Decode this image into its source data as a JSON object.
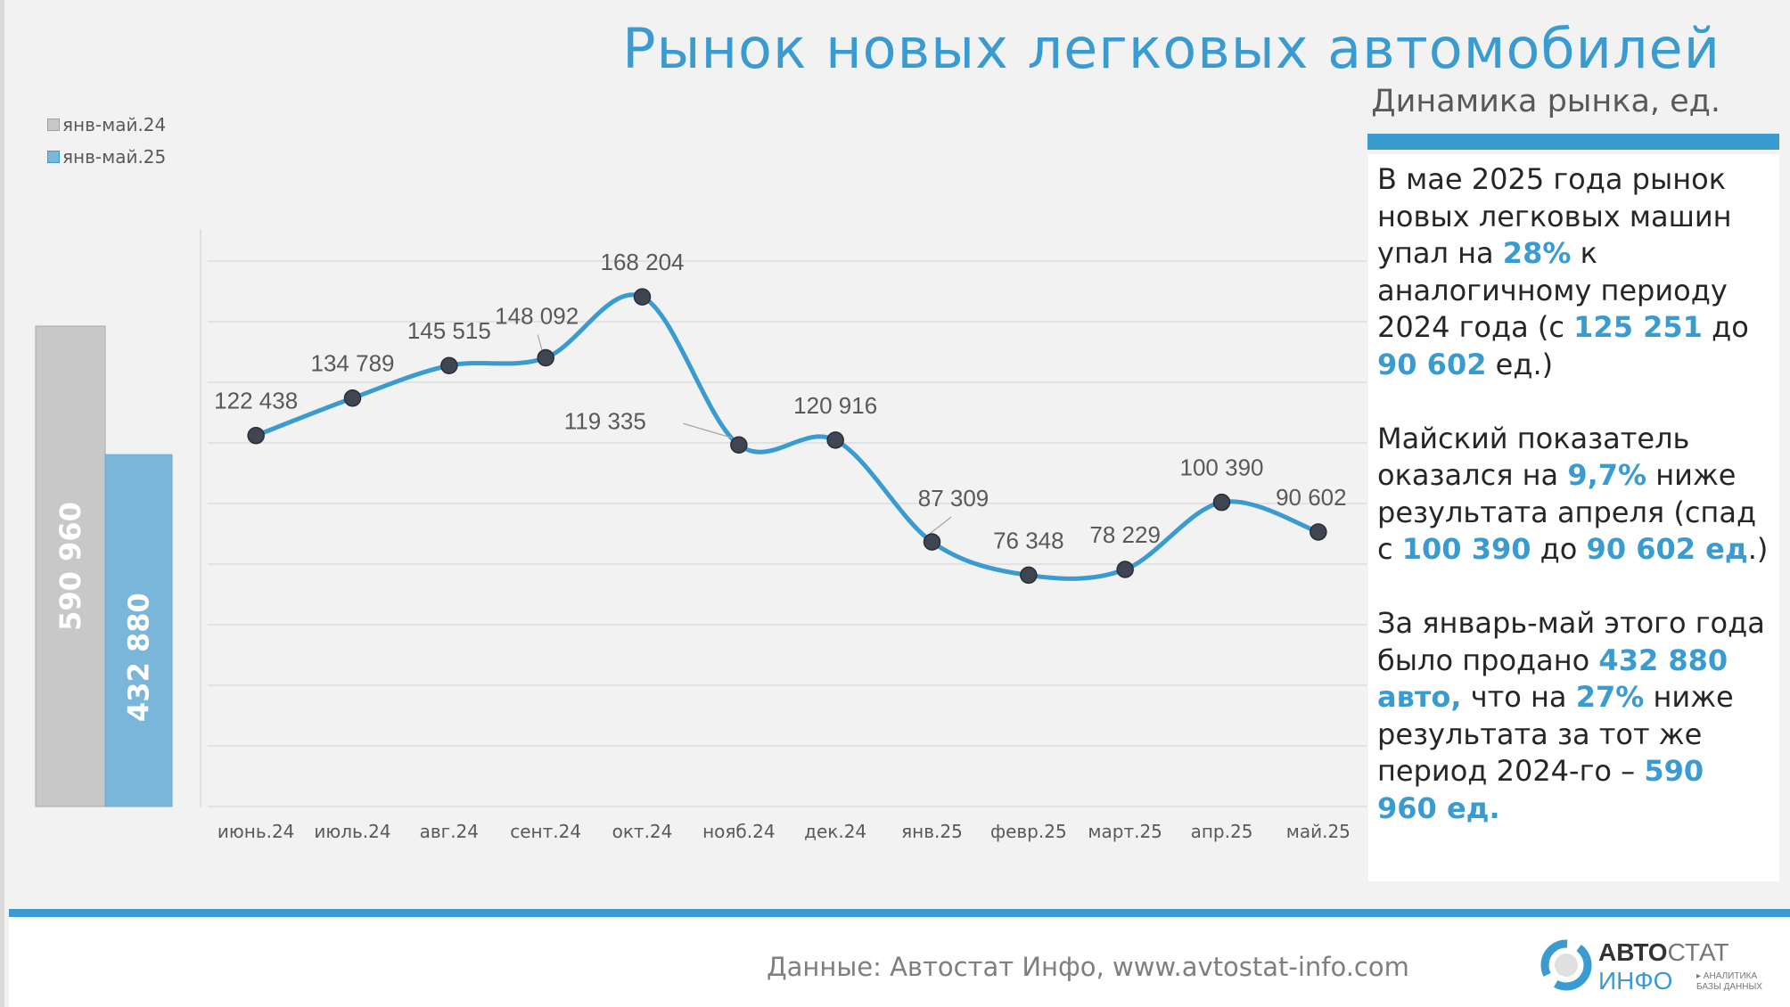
{
  "header": {
    "title": "Рынок новых легковых автомобилей",
    "subtitle": "Динамика рынка, ед."
  },
  "colors": {
    "accent": "#3a9bd0",
    "bar_2024": "#c8c8c8",
    "bar_2025": "#7ab6d9",
    "line": "#3a9bd0",
    "marker": "#404552"
  },
  "chart_data": [
    {
      "type": "bar",
      "categories": [
        "янв-май.24",
        "янв-май.25"
      ],
      "values": [
        590960,
        432880
      ],
      "value_labels": [
        "590 960",
        "432 880"
      ],
      "legend": [
        "янв-май.24",
        "янв-май.25"
      ],
      "legend_position": "top-left"
    },
    {
      "type": "line",
      "categories": [
        "июнь.24",
        "июль.24",
        "авг.24",
        "сент.24",
        "окт.24",
        "нояб.24",
        "дек.24",
        "янв.25",
        "февр.25",
        "март.25",
        "апр.25",
        "май.25"
      ],
      "values": [
        122438,
        134789,
        145515,
        148092,
        168204,
        119335,
        120916,
        87309,
        76348,
        78229,
        100390,
        90602
      ],
      "value_labels": [
        "122 438",
        "134 789",
        "145 515",
        "148 092",
        "168 204",
        "119 335",
        "120 916",
        "87 309",
        "76 348",
        "78 229",
        "100 390",
        "90 602"
      ],
      "ylim": [
        0,
        180000
      ],
      "grid_step": 20000,
      "grid": true,
      "smooth": true
    }
  ],
  "commentary": [
    [
      {
        "t": "В мае 2025 года рынок новых легковых машин упал на "
      },
      {
        "t": "28%",
        "hl": true
      },
      {
        "t": " к аналогичному периоду 2024 года (с "
      },
      {
        "t": "125 251",
        "hl": true
      },
      {
        "t": " до "
      },
      {
        "t": "90 602",
        "hl": true
      },
      {
        "t": " ед.)"
      }
    ],
    [
      {
        "t": "Майский показатель оказался на "
      },
      {
        "t": "9,7%",
        "hl": true
      },
      {
        "t": " ниже результата апреля (спад с "
      },
      {
        "t": "100 390",
        "hl": true
      },
      {
        "t": " до "
      },
      {
        "t": "90 602 ед",
        "hl": true
      },
      {
        "t": ".)"
      }
    ],
    [
      {
        "t": "За январь-май этого года было продано "
      },
      {
        "t": "432 880 авто,",
        "hl": true
      },
      {
        "t": " что на "
      },
      {
        "t": "27%",
        "hl": true
      },
      {
        "t": " ниже результата за тот же период 2024-го – "
      },
      {
        "t": "590 960 ед.",
        "hl": true
      }
    ]
  ],
  "footer": {
    "source": "Данные: Автостат Инфо, www.avtostat-info.com",
    "logo_text": "АВТОСТАТ ИНФО АНАЛИТИКА БАЗЫ ДАННЫХ"
  }
}
